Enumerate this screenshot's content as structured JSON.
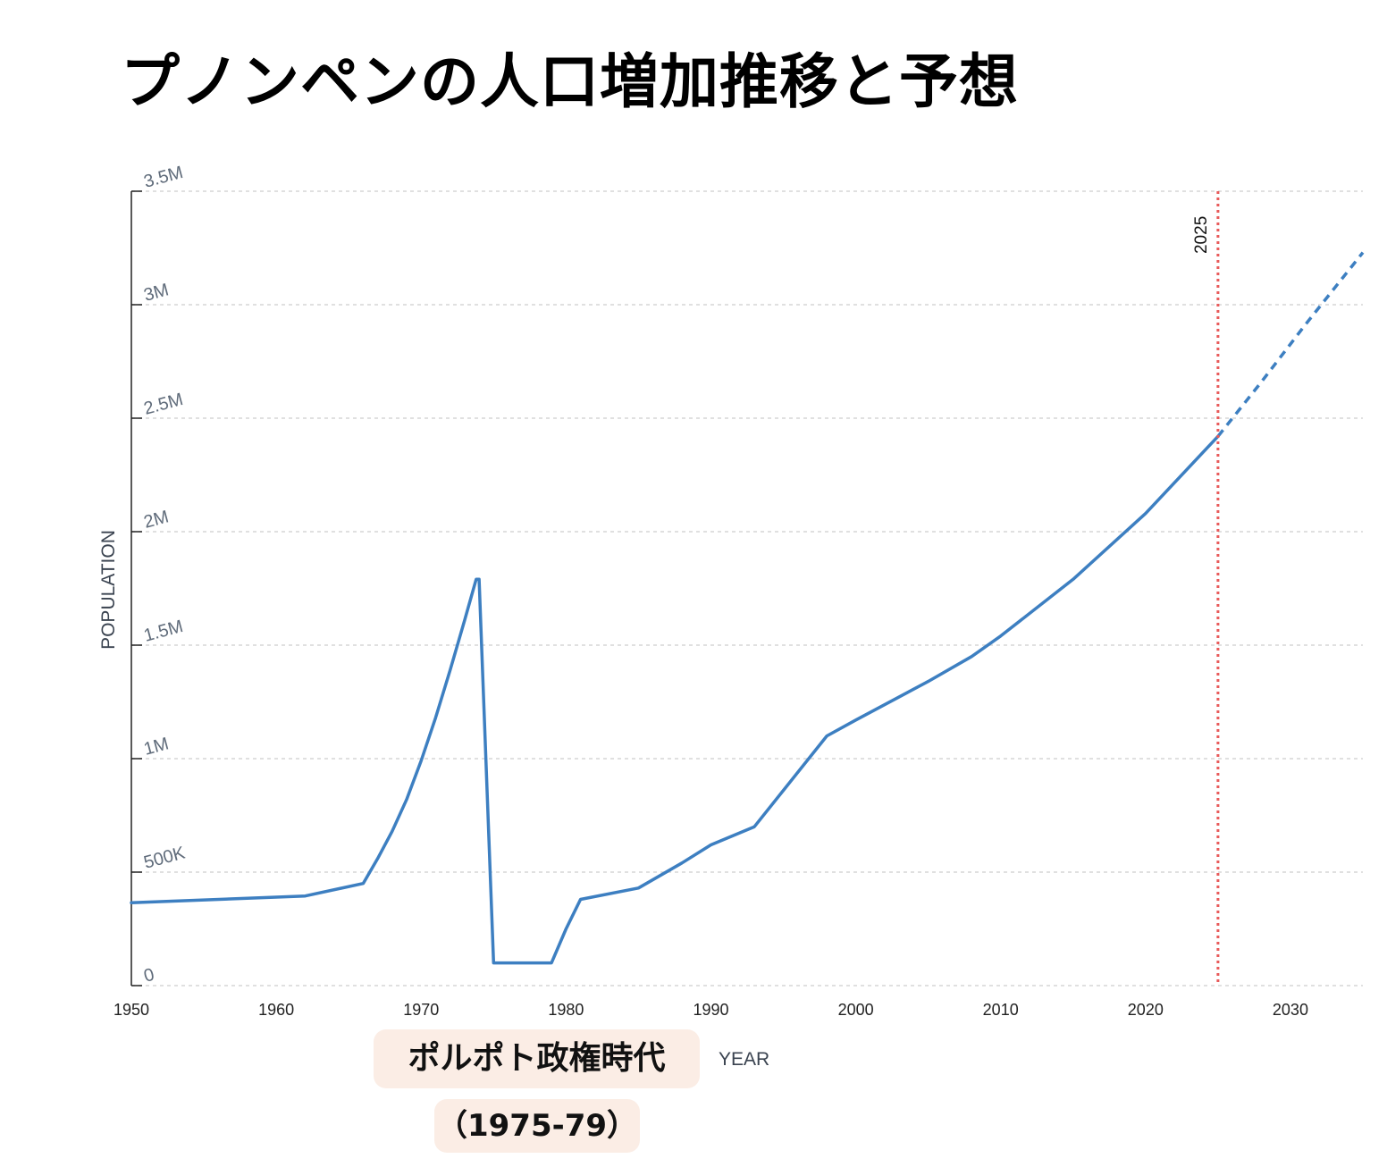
{
  "title": "プノンペンの人口増加推移と予想",
  "chart_data": {
    "type": "line",
    "title": "プノンペンの人口増加推移と予想",
    "xlabel": "YEAR",
    "ylabel": "POPULATION",
    "xlim": [
      1950,
      2035
    ],
    "ylim": [
      0,
      3500000
    ],
    "x_ticks": [
      "1950",
      "1960",
      "1970",
      "1980",
      "1990",
      "2000",
      "2010",
      "2020",
      "2030"
    ],
    "x_tick_values": [
      1950,
      1960,
      1970,
      1980,
      1990,
      2000,
      2010,
      2020,
      2030
    ],
    "y_ticks": [
      "0",
      "500K",
      "1M",
      "1.5M",
      "2M",
      "2.5M",
      "3M",
      "3.5M"
    ],
    "y_tick_values": [
      0,
      500000,
      1000000,
      1500000,
      2000000,
      2500000,
      3000000,
      3500000
    ],
    "grid": "horizontal dashed",
    "series": [
      {
        "style": "solid",
        "color": "#3d7fc1",
        "x": [
          1950,
          1962,
          1966,
          1967,
          1968,
          1969,
          1970,
          1971,
          1972,
          1973,
          1973.8,
          1974,
          1975,
          1976,
          1978,
          1979,
          1980,
          1981,
          1985,
          1988,
          1990,
          1993,
          1995,
          1998,
          2000,
          2005,
          2008,
          2010,
          2015,
          2020,
          2025
        ],
        "y": [
          365000,
          395000,
          450000,
          560000,
          680000,
          820000,
          990000,
          1180000,
          1390000,
          1610000,
          1790000,
          1790000,
          100000,
          100000,
          100000,
          100000,
          250000,
          380000,
          430000,
          540000,
          620000,
          700000,
          860000,
          1100000,
          1170000,
          1340000,
          1450000,
          1540000,
          1790000,
          2080000,
          2420000
        ]
      },
      {
        "style": "dashed",
        "color": "#3d7fc1",
        "x": [
          2025,
          2028,
          2031,
          2035
        ],
        "y": [
          2420000,
          2660000,
          2910000,
          3230000
        ]
      }
    ],
    "marker": {
      "x": 2025,
      "label": "2025",
      "color": "#e85a5a",
      "style": "dotted"
    },
    "annotations": [
      {
        "text": "ポルポト政権時代",
        "background": "#fbede5"
      },
      {
        "text": "（1975-79）",
        "background": "#fbede5"
      }
    ]
  }
}
